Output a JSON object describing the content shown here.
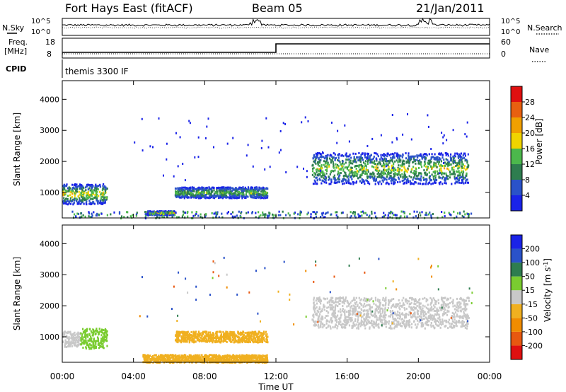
{
  "header": {
    "station": "Fort Hays East (fitACF)",
    "beam": "Beam 05",
    "date": "21/Jan/2011"
  },
  "top_panels": {
    "nsky_label": "N.Sky",
    "nsearch_label": "N.Search",
    "noise_ticks": [
      "10^5",
      "10^0"
    ],
    "freq_label": "Freq.",
    "freq_unit": "[MHz]",
    "freq_ticks": [
      "18",
      "8"
    ],
    "nave_label": "Nave",
    "nave_ticks": [
      "60",
      "0"
    ],
    "cpid_label": "CPID",
    "cpid_text": "themis 3300 IF"
  },
  "colors": {
    "power": [
      "#1a23e8",
      "#2a52c9",
      "#2e7d4f",
      "#4cb84c",
      "#f0d400",
      "#f0a000",
      "#e86010",
      "#e01010"
    ],
    "velocity": [
      "#e01010",
      "#e85810",
      "#f08c00",
      "#f0b020",
      "#c8c8c8",
      "#7acc30",
      "#2e7d4f",
      "#2a52c9",
      "#1a23e8"
    ]
  },
  "chart_data": [
    {
      "type": "heatmap",
      "name": "power",
      "ylabel": "Slant Range [km]",
      "xlabel": "Time UT",
      "x_ticks": [
        "00:00",
        "04:00",
        "08:00",
        "12:00",
        "16:00",
        "20:00",
        "00:00"
      ],
      "x_range_hours": [
        0,
        24
      ],
      "y_ticks": [
        1000,
        2000,
        3000,
        4000
      ],
      "ylim": [
        180,
        4600
      ],
      "colorbar": {
        "label": "Power [dB]",
        "ticks": [
          "4",
          "8",
          "12",
          "16",
          "20",
          "24",
          "28"
        ],
        "range": [
          0,
          32
        ]
      },
      "regions": [
        {
          "t0": 0.0,
          "t1": 2.5,
          "r0": 650,
          "r1": 1300,
          "peak": 18
        },
        {
          "t0": 4.7,
          "t1": 6.3,
          "r0": 300,
          "r1": 430,
          "peak": 20
        },
        {
          "t0": 6.3,
          "t1": 11.5,
          "r0": 850,
          "r1": 1200,
          "peak": 14
        },
        {
          "t0": 14.0,
          "t1": 22.8,
          "r0": 1300,
          "r1": 2300,
          "peak": 16
        }
      ]
    },
    {
      "type": "heatmap",
      "name": "velocity",
      "ylabel": "Slant Range [km]",
      "xlabel": "Time UT",
      "x_ticks": [
        "00:00",
        "04:00",
        "08:00",
        "12:00",
        "16:00",
        "20:00",
        "00:00"
      ],
      "x_range_hours": [
        0,
        24
      ],
      "y_ticks": [
        1000,
        2000,
        3000,
        4000
      ],
      "ylim": [
        180,
        4600
      ],
      "colorbar": {
        "label": "Velocity [m s",
        "label_sup": "-1",
        "label_end": "]",
        "ticks": [
          "-200",
          "-100",
          "-50",
          "-15",
          "15",
          "50",
          "100",
          "200"
        ],
        "range": [
          -250,
          250
        ]
      },
      "regions": [
        {
          "t0": 0.0,
          "t1": 1.0,
          "r0": 700,
          "r1": 1200,
          "v": 0
        },
        {
          "t0": 1.0,
          "t1": 2.5,
          "r0": 650,
          "r1": 1300,
          "v": 40
        },
        {
          "t0": 4.5,
          "t1": 11.5,
          "r0": 200,
          "r1": 450,
          "v": -40
        },
        {
          "t0": 6.3,
          "t1": 11.5,
          "r0": 850,
          "r1": 1200,
          "v": -25
        },
        {
          "t0": 14.0,
          "t1": 22.8,
          "r0": 1300,
          "r1": 2300,
          "v": 0
        }
      ]
    }
  ]
}
